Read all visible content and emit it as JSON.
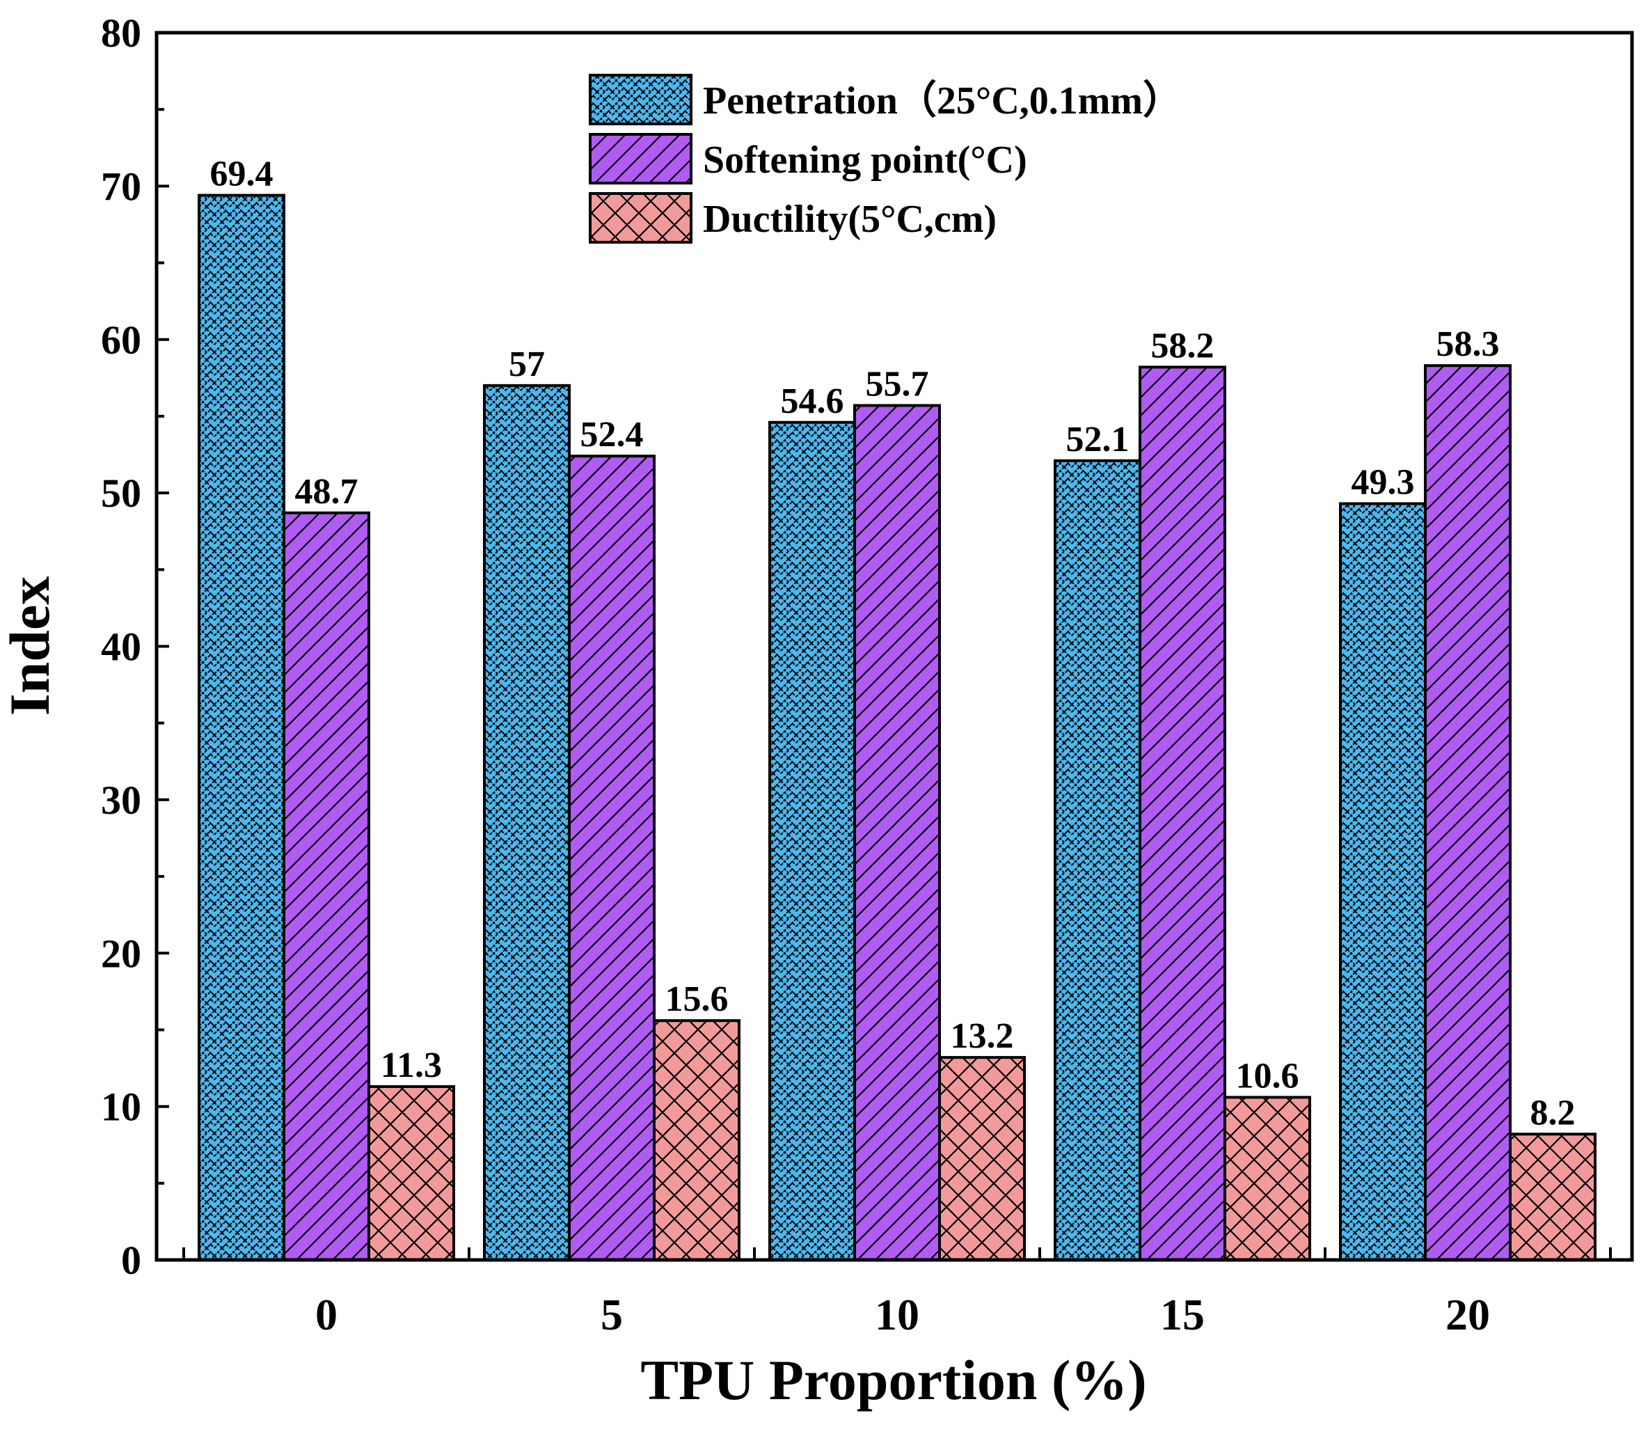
{
  "chart_data": {
    "type": "bar",
    "title": "",
    "xlabel": "TPU Proportion (%)",
    "ylabel": "Index",
    "categories": [
      "0",
      "5",
      "10",
      "15",
      "20"
    ],
    "yticks": [
      "0",
      "10",
      "20",
      "30",
      "40",
      "50",
      "60",
      "70",
      "80"
    ],
    "ylim": [
      0,
      80
    ],
    "legend_position": "top-center",
    "series": [
      {
        "name": "Penetration（25°C,0.1mm）",
        "values": [
          69.4,
          57,
          54.6,
          52.1,
          49.3
        ],
        "labels": [
          "69.4",
          "57",
          "54.6",
          "52.1",
          "49.3"
        ],
        "color": "#4cb8f0",
        "pattern": "zigzag-crosshatch"
      },
      {
        "name": "Softening point(°C)",
        "values": [
          48.7,
          52.4,
          55.7,
          58.2,
          58.3
        ],
        "labels": [
          "48.7",
          "52.4",
          "55.7",
          "58.2",
          "58.3"
        ],
        "color": "#b05cf2",
        "pattern": "diagonal"
      },
      {
        "name": "Ductility(5°C,cm)",
        "values": [
          11.3,
          15.6,
          13.2,
          10.6,
          8.2
        ],
        "labels": [
          "11.3",
          "15.6",
          "13.2",
          "10.6",
          "8.2"
        ],
        "color": "#f29a9a",
        "pattern": "crosshatch"
      }
    ]
  }
}
